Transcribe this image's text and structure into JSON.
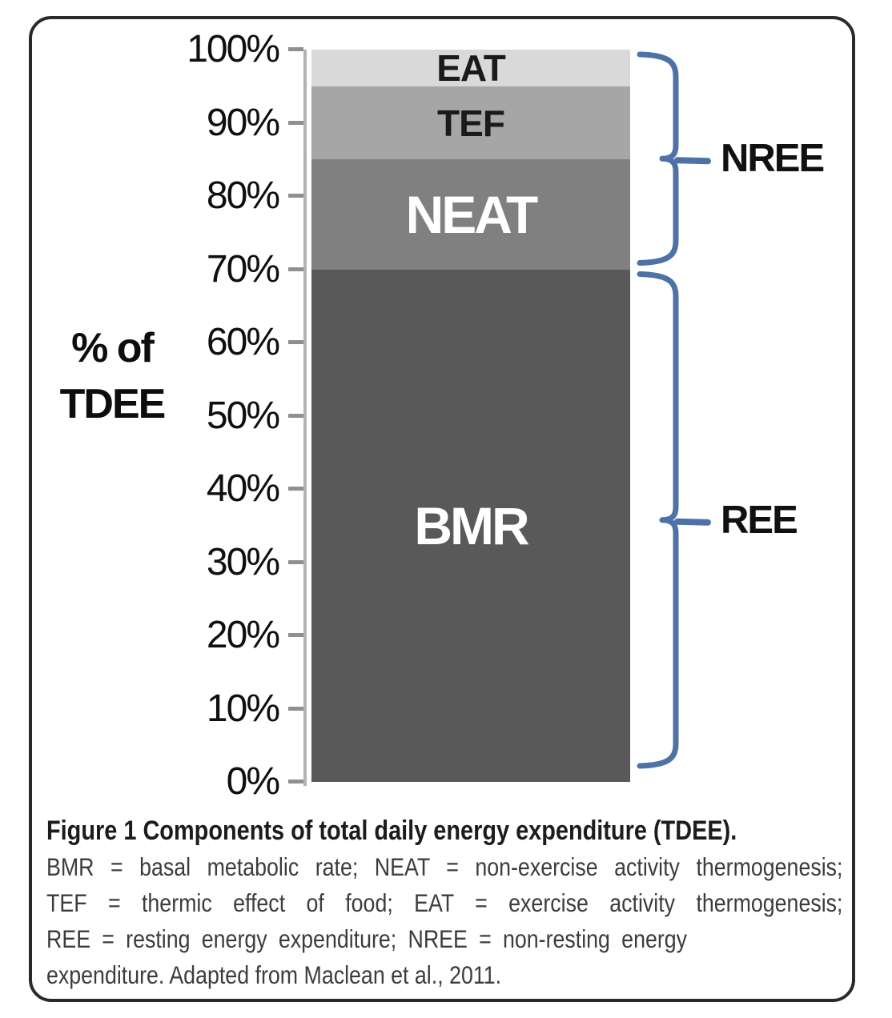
{
  "chart_data": {
    "type": "bar",
    "stacked": true,
    "title": "",
    "ylabel_line1": "% of",
    "ylabel_line2": "TDEE",
    "ylim": [
      0,
      100
    ],
    "y_tick_labels": [
      "0%",
      "10%",
      "20%",
      "30%",
      "40%",
      "50%",
      "60%",
      "70%",
      "80%",
      "90%",
      "100%"
    ],
    "grid": false,
    "segments": [
      {
        "label": "BMR",
        "from": 0,
        "to": 70,
        "value": 70,
        "color": "#595959",
        "label_color": "#ffffff"
      },
      {
        "label": "NEAT",
        "from": 70,
        "to": 85,
        "value": 15,
        "color": "#808080",
        "label_color": "#ffffff"
      },
      {
        "label": "TEF",
        "from": 85,
        "to": 95,
        "value": 10,
        "color": "#a6a6a6",
        "label_color": "#1a1a1a"
      },
      {
        "label": "EAT",
        "from": 95,
        "to": 100,
        "value": 5,
        "color": "#d9d9d9",
        "label_color": "#1a1a1a"
      }
    ],
    "braces": [
      {
        "label": "NREE",
        "from": 70,
        "to": 100
      },
      {
        "label": "REE",
        "from": 0,
        "to": 70
      }
    ],
    "brace_color": "#4e72a8"
  },
  "caption": {
    "lines": [
      {
        "text": "Figure 1 Components of total daily energy expenditure (TDEE).",
        "style": "title"
      },
      {
        "text": "BMR = basal metabolic rate; NEAT = non-exercise activity thermogenesis;",
        "style": "justify"
      },
      {
        "text": "TEF = thermic effect of food; EAT = exercise activity thermogenesis;",
        "style": "justify"
      },
      {
        "text": "REE = resting energy expenditure; NREE = non-resting energy",
        "style": "wide"
      },
      {
        "text": "expenditure. Adapted from Maclean et al., 2011.",
        "style": "normal"
      }
    ]
  }
}
